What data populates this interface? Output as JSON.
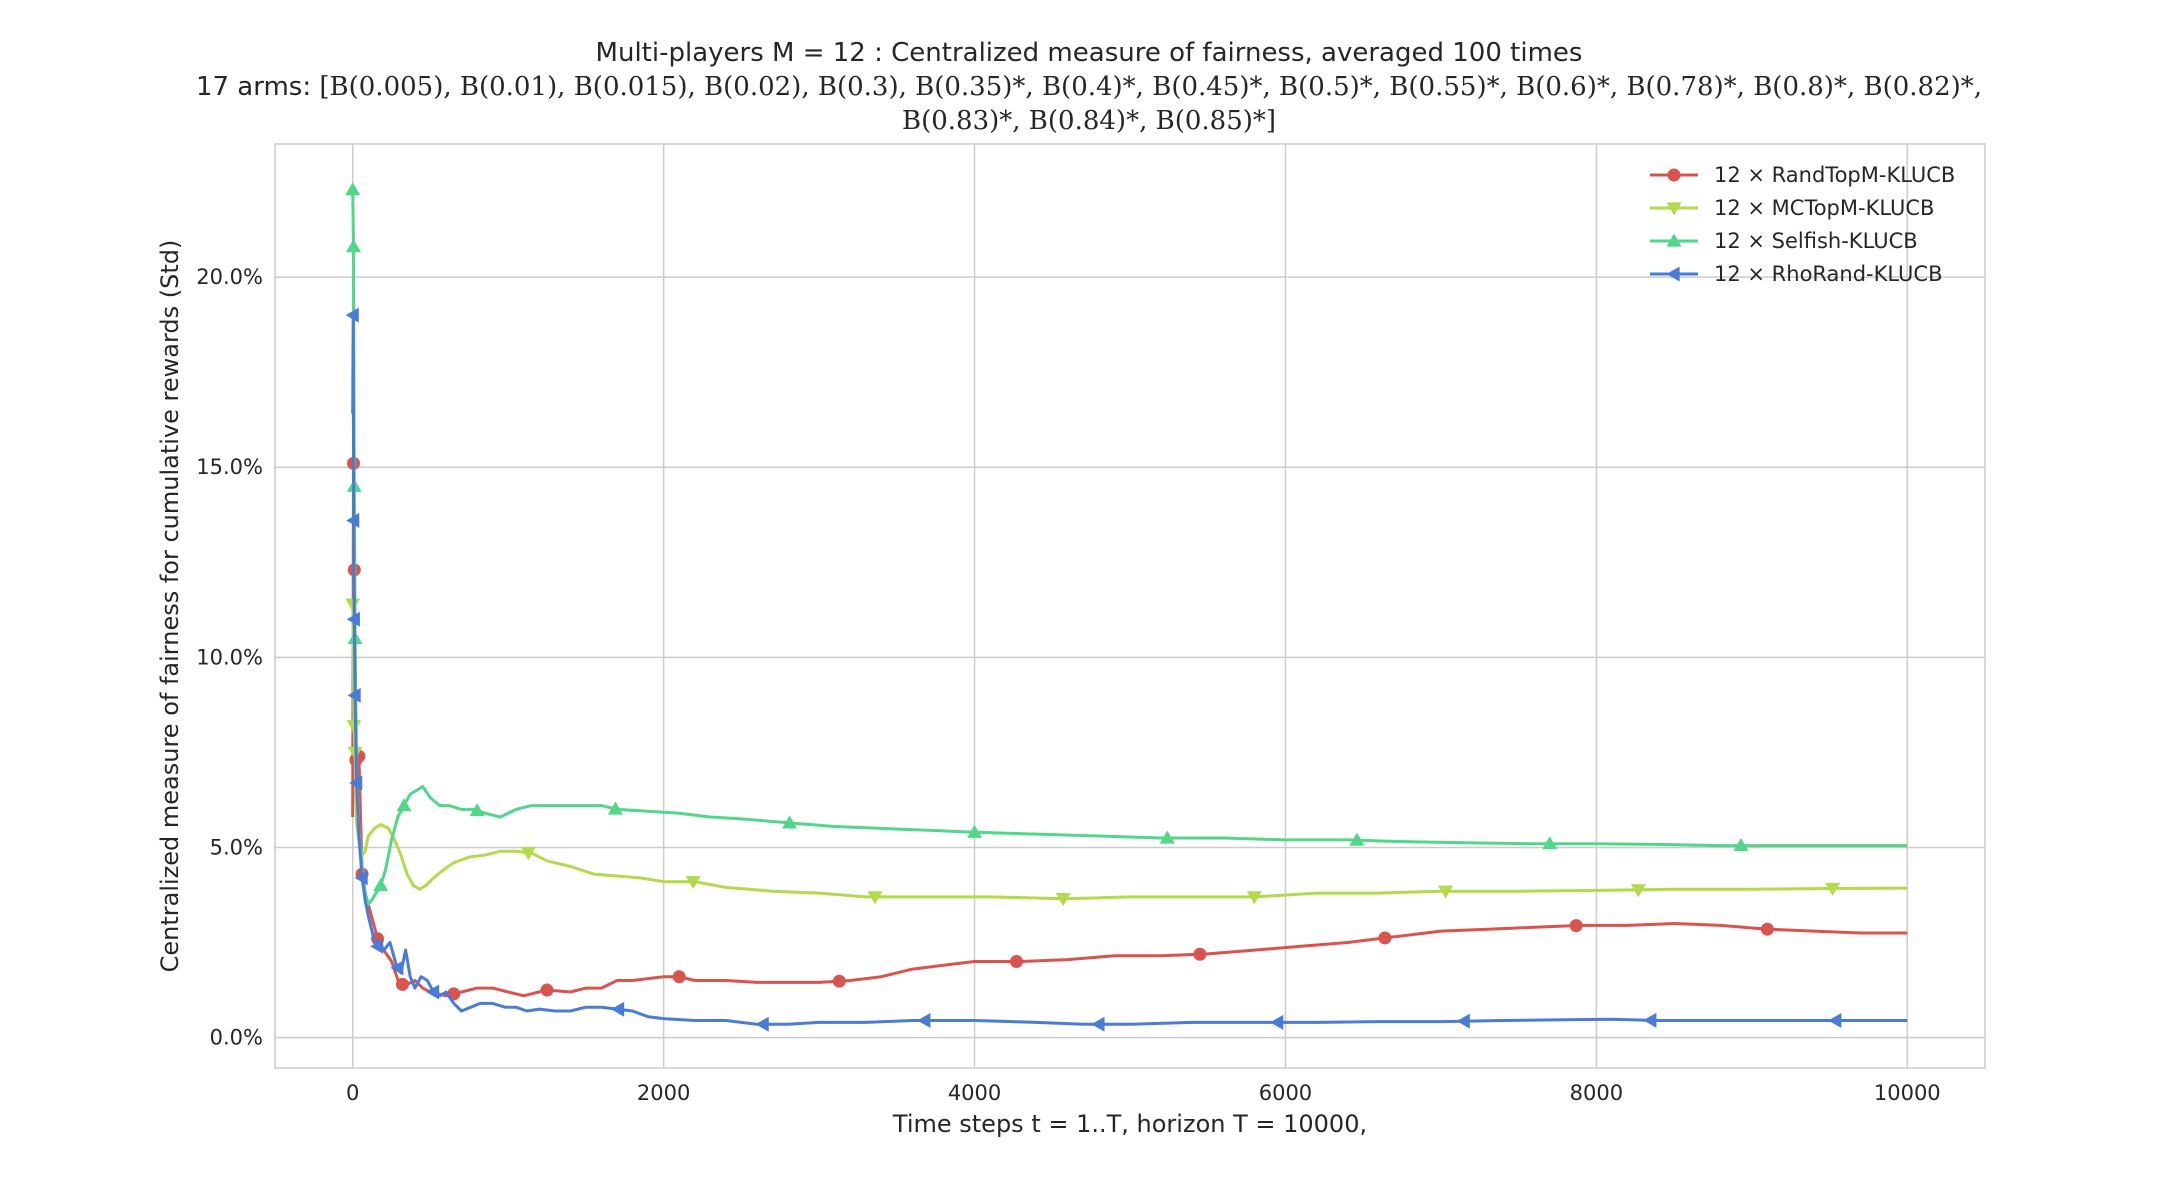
{
  "title": {
    "line1": "Multi-players M = 12 : Centralized measure of fairness, averaged 100 times",
    "line2_prefix": "17 arms:",
    "line2": "[B(0.005), B(0.01), B(0.015), B(0.02), B(0.3), B(0.35)*, B(0.4)*, B(0.45)*, B(0.5)*, B(0.55)*, B(0.6)*, B(0.78)*, B(0.8)*, B(0.82)*,",
    "line3": "B(0.83)*, B(0.84)*, B(0.85)*]"
  },
  "colors": {
    "RandTopM": "#d9534f",
    "MCTopM": "#b3d94d",
    "Selfish": "#52d68a",
    "RhoRand": "#4a7bd6",
    "grid": "#cccccc",
    "frame": "#cccccc"
  },
  "chart_data": {
    "type": "line",
    "xlabel": "Time steps t = 1..T, horizon T = 10000,",
    "ylabel": "Centralized measure of fairness for cumulative rewards (Std)",
    "xlim": [
      -500,
      10500
    ],
    "ylim": [
      -0.8,
      23.5
    ],
    "xticks": [
      0,
      2000,
      4000,
      6000,
      8000,
      10000
    ],
    "xtick_labels": [
      "0",
      "2000",
      "4000",
      "6000",
      "8000",
      "10000"
    ],
    "yticks": [
      0,
      5,
      10,
      15,
      20
    ],
    "ytick_labels": [
      "0.0%",
      "5.0%",
      "10.0%",
      "15.0%",
      "20.0%"
    ],
    "grid": true,
    "legend_position": "top-right",
    "series": [
      {
        "name": "12 × RandTopM-KLUCB",
        "key": "RandTopM",
        "marker": "circle",
        "points": [
          [
            0,
            5.8
          ],
          [
            5,
            15.1
          ],
          [
            10,
            12.3
          ],
          [
            20,
            7.3
          ],
          [
            40,
            7.4
          ],
          [
            60,
            4.3
          ],
          [
            80,
            3.8
          ],
          [
            120,
            3.2
          ],
          [
            160,
            2.6
          ],
          [
            200,
            2.3
          ],
          [
            250,
            2.0
          ],
          [
            300,
            1.4
          ],
          [
            350,
            1.4
          ],
          [
            400,
            1.5
          ],
          [
            450,
            1.3
          ],
          [
            500,
            1.2
          ],
          [
            600,
            1.1
          ],
          [
            700,
            1.2
          ],
          [
            800,
            1.3
          ],
          [
            900,
            1.3
          ],
          [
            1000,
            1.2
          ],
          [
            1100,
            1.1
          ],
          [
            1250,
            1.25
          ],
          [
            1400,
            1.2
          ],
          [
            1500,
            1.3
          ],
          [
            1600,
            1.3
          ],
          [
            1700,
            1.5
          ],
          [
            1800,
            1.5
          ],
          [
            1900,
            1.55
          ],
          [
            2000,
            1.6
          ],
          [
            2100,
            1.6
          ],
          [
            2200,
            1.5
          ],
          [
            2400,
            1.5
          ],
          [
            2600,
            1.45
          ],
          [
            2800,
            1.45
          ],
          [
            3000,
            1.45
          ],
          [
            3200,
            1.5
          ],
          [
            3400,
            1.6
          ],
          [
            3600,
            1.8
          ],
          [
            3800,
            1.9
          ],
          [
            4000,
            2.0
          ],
          [
            4300,
            2.0
          ],
          [
            4600,
            2.05
          ],
          [
            4900,
            2.15
          ],
          [
            5200,
            2.15
          ],
          [
            5500,
            2.2
          ],
          [
            5800,
            2.3
          ],
          [
            6100,
            2.4
          ],
          [
            6400,
            2.5
          ],
          [
            6700,
            2.65
          ],
          [
            7000,
            2.8
          ],
          [
            7300,
            2.85
          ],
          [
            7600,
            2.9
          ],
          [
            7900,
            2.95
          ],
          [
            8200,
            2.95
          ],
          [
            8500,
            3.0
          ],
          [
            8800,
            2.95
          ],
          [
            9100,
            2.85
          ],
          [
            9400,
            2.8
          ],
          [
            9700,
            2.75
          ],
          [
            10000,
            2.75
          ]
        ],
        "markers_x": [
          5,
          10,
          20,
          40,
          60,
          160,
          320,
          650,
          1250,
          2100,
          3130,
          4270,
          5450,
          6640,
          7870,
          9100
        ]
      },
      {
        "name": "12 × MCTopM-KLUCB",
        "key": "MCTopM",
        "marker": "triangle-down",
        "points": [
          [
            0,
            11.4
          ],
          [
            8,
            8.2
          ],
          [
            15,
            7.5
          ],
          [
            25,
            5.6
          ],
          [
            40,
            5.2
          ],
          [
            60,
            4.8
          ],
          [
            80,
            4.9
          ],
          [
            100,
            5.3
          ],
          [
            140,
            5.5
          ],
          [
            180,
            5.6
          ],
          [
            230,
            5.5
          ],
          [
            270,
            5.2
          ],
          [
            310,
            4.8
          ],
          [
            350,
            4.3
          ],
          [
            390,
            4.0
          ],
          [
            430,
            3.9
          ],
          [
            470,
            4.0
          ],
          [
            520,
            4.2
          ],
          [
            580,
            4.4
          ],
          [
            650,
            4.6
          ],
          [
            750,
            4.75
          ],
          [
            850,
            4.8
          ],
          [
            950,
            4.9
          ],
          [
            1050,
            4.9
          ],
          [
            1150,
            4.85
          ],
          [
            1250,
            4.65
          ],
          [
            1400,
            4.5
          ],
          [
            1550,
            4.3
          ],
          [
            1700,
            4.25
          ],
          [
            1850,
            4.2
          ],
          [
            2000,
            4.1
          ],
          [
            2200,
            4.1
          ],
          [
            2400,
            3.95
          ],
          [
            2700,
            3.85
          ],
          [
            3000,
            3.8
          ],
          [
            3300,
            3.7
          ],
          [
            3700,
            3.7
          ],
          [
            4100,
            3.7
          ],
          [
            4600,
            3.65
          ],
          [
            5000,
            3.7
          ],
          [
            5400,
            3.7
          ],
          [
            5800,
            3.7
          ],
          [
            6200,
            3.8
          ],
          [
            6600,
            3.8
          ],
          [
            7000,
            3.85
          ],
          [
            7500,
            3.85
          ],
          [
            8000,
            3.87
          ],
          [
            8500,
            3.9
          ],
          [
            9000,
            3.9
          ],
          [
            9500,
            3.92
          ],
          [
            10000,
            3.93
          ]
        ],
        "markers_x": [
          0,
          8,
          15,
          1130,
          2190,
          3360,
          4570,
          5800,
          7030,
          8270,
          9520
        ]
      },
      {
        "name": "12 × Selfish-KLUCB",
        "key": "Selfish",
        "marker": "triangle-up",
        "points": [
          [
            0,
            22.3
          ],
          [
            5,
            20.8
          ],
          [
            10,
            14.5
          ],
          [
            15,
            10.5
          ],
          [
            25,
            7.0
          ],
          [
            40,
            5.5
          ],
          [
            60,
            4.5
          ],
          [
            80,
            3.8
          ],
          [
            100,
            3.5
          ],
          [
            120,
            3.6
          ],
          [
            150,
            3.8
          ],
          [
            180,
            4.0
          ],
          [
            210,
            4.4
          ],
          [
            250,
            5.2
          ],
          [
            290,
            5.8
          ],
          [
            330,
            6.1
          ],
          [
            370,
            6.4
          ],
          [
            410,
            6.5
          ],
          [
            450,
            6.6
          ],
          [
            500,
            6.3
          ],
          [
            560,
            6.1
          ],
          [
            620,
            6.1
          ],
          [
            700,
            6.0
          ],
          [
            780,
            6.0
          ],
          [
            850,
            5.9
          ],
          [
            950,
            5.8
          ],
          [
            1050,
            6.0
          ],
          [
            1150,
            6.1
          ],
          [
            1300,
            6.1
          ],
          [
            1450,
            6.1
          ],
          [
            1600,
            6.1
          ],
          [
            1700,
            6.0
          ],
          [
            1900,
            5.95
          ],
          [
            2100,
            5.9
          ],
          [
            2300,
            5.8
          ],
          [
            2500,
            5.75
          ],
          [
            2800,
            5.65
          ],
          [
            3100,
            5.55
          ],
          [
            3400,
            5.5
          ],
          [
            3700,
            5.45
          ],
          [
            4000,
            5.4
          ],
          [
            4400,
            5.35
          ],
          [
            4800,
            5.3
          ],
          [
            5200,
            5.25
          ],
          [
            5600,
            5.25
          ],
          [
            6000,
            5.2
          ],
          [
            6400,
            5.2
          ],
          [
            6800,
            5.15
          ],
          [
            7200,
            5.12
          ],
          [
            7600,
            5.1
          ],
          [
            8000,
            5.1
          ],
          [
            8400,
            5.08
          ],
          [
            8800,
            5.05
          ],
          [
            9200,
            5.05
          ],
          [
            9600,
            5.05
          ],
          [
            10000,
            5.05
          ]
        ],
        "markers_x": [
          0,
          5,
          10,
          15,
          180,
          330,
          800,
          1690,
          2810,
          4000,
          5240,
          6460,
          7700,
          8930
        ]
      },
      {
        "name": "12 × RhoRand-KLUCB",
        "key": "RhoRand",
        "marker": "triangle-left",
        "points": [
          [
            0,
            16.4
          ],
          [
            3,
            19.0
          ],
          [
            6,
            13.6
          ],
          [
            10,
            11.0
          ],
          [
            15,
            9.0
          ],
          [
            25,
            6.7
          ],
          [
            40,
            5.3
          ],
          [
            60,
            4.2
          ],
          [
            80,
            3.6
          ],
          [
            100,
            3.2
          ],
          [
            130,
            2.7
          ],
          [
            160,
            2.4
          ],
          [
            200,
            2.3
          ],
          [
            240,
            2.5
          ],
          [
            280,
            1.9
          ],
          [
            310,
            1.7
          ],
          [
            340,
            2.3
          ],
          [
            370,
            1.6
          ],
          [
            400,
            1.3
          ],
          [
            440,
            1.6
          ],
          [
            480,
            1.5
          ],
          [
            520,
            1.2
          ],
          [
            560,
            1.1
          ],
          [
            600,
            1.2
          ],
          [
            650,
            0.9
          ],
          [
            700,
            0.7
          ],
          [
            760,
            0.8
          ],
          [
            820,
            0.9
          ],
          [
            900,
            0.9
          ],
          [
            980,
            0.8
          ],
          [
            1050,
            0.8
          ],
          [
            1120,
            0.7
          ],
          [
            1200,
            0.75
          ],
          [
            1300,
            0.7
          ],
          [
            1400,
            0.7
          ],
          [
            1500,
            0.8
          ],
          [
            1600,
            0.8
          ],
          [
            1700,
            0.75
          ],
          [
            1800,
            0.7
          ],
          [
            1900,
            0.55
          ],
          [
            2000,
            0.5
          ],
          [
            2200,
            0.45
          ],
          [
            2400,
            0.45
          ],
          [
            2600,
            0.35
          ],
          [
            2800,
            0.35
          ],
          [
            3000,
            0.4
          ],
          [
            3300,
            0.4
          ],
          [
            3600,
            0.45
          ],
          [
            4000,
            0.45
          ],
          [
            4400,
            0.4
          ],
          [
            4700,
            0.35
          ],
          [
            5000,
            0.35
          ],
          [
            5400,
            0.4
          ],
          [
            5800,
            0.4
          ],
          [
            6200,
            0.4
          ],
          [
            6600,
            0.42
          ],
          [
            7000,
            0.42
          ],
          [
            7400,
            0.45
          ],
          [
            7800,
            0.47
          ],
          [
            8100,
            0.48
          ],
          [
            8400,
            0.45
          ],
          [
            8800,
            0.45
          ],
          [
            9200,
            0.45
          ],
          [
            9600,
            0.45
          ],
          [
            10000,
            0.45
          ]
        ],
        "markers_x": [
          3,
          6,
          10,
          15,
          25,
          60,
          160,
          290,
          520,
          1710,
          2640,
          3680,
          4800,
          5950,
          7150,
          8350,
          9540
        ]
      }
    ]
  }
}
